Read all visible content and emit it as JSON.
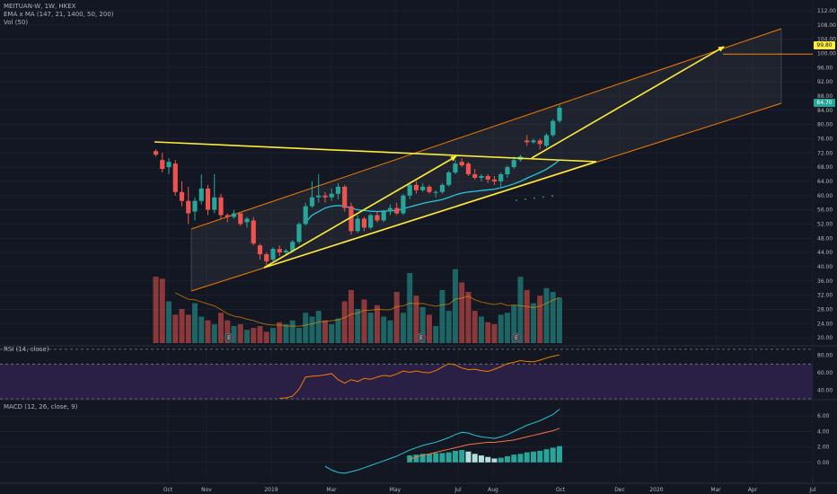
{
  "header": {
    "symbol_line": "MEITUAN-W, 1W, HKEX",
    "ema_line": "EMA x MA (147, 21, 1400, 50, 200)",
    "vol_line": "Vol (50)"
  },
  "panes": {
    "rsi_title": "RSI (14, close)",
    "macd_title": "MACD (12, 26, close, 9)"
  },
  "price_labels": {
    "target": "99.80",
    "last": "84.70"
  },
  "colors": {
    "background": "#131722",
    "up": "#26a69a",
    "down": "#ef5350",
    "trendline": "#ffeb3b",
    "channel": "#f57c00",
    "ema": "#26c6da",
    "rsi_band": "#2a1f45"
  },
  "event_markers": [
    "E",
    "E",
    "E"
  ],
  "chart_data": [
    {
      "type": "candlestick",
      "title": "MEITUAN-W, 1W, HKEX",
      "xlabel": "",
      "ylabel": "",
      "y_ticks": [
        "112.00",
        "108.00",
        "104.00",
        "100.00",
        "96.00",
        "92.00",
        "88.00",
        "84.00",
        "80.00",
        "76.00",
        "72.00",
        "68.00",
        "64.00",
        "60.00",
        "56.00",
        "52.00",
        "48.00",
        "44.00",
        "40.00",
        "36.00",
        "32.00",
        "28.00",
        "24.00",
        "20.00"
      ],
      "x_ticks": [
        "Oct",
        "Nov",
        "2019",
        "Mar",
        "May",
        "Jul",
        "Aug",
        "Oct",
        "Dec",
        "2020",
        "Mar",
        "Apr",
        "Jul"
      ],
      "ylim": [
        18,
        114
      ],
      "candles": [
        {
          "o": 72.5,
          "h": 73.0,
          "l": 71.0,
          "c": 71.5
        },
        {
          "o": 70.0,
          "h": 72.0,
          "l": 66.5,
          "c": 67.5
        },
        {
          "o": 68.0,
          "h": 70.5,
          "l": 66.0,
          "c": 69.5
        },
        {
          "o": 69.0,
          "h": 70.0,
          "l": 60.0,
          "c": 61.0
        },
        {
          "o": 61.0,
          "h": 64.0,
          "l": 57.0,
          "c": 58.5
        },
        {
          "o": 58.5,
          "h": 62.5,
          "l": 52.0,
          "c": 55.0
        },
        {
          "o": 55.5,
          "h": 59.5,
          "l": 53.0,
          "c": 58.5
        },
        {
          "o": 58.5,
          "h": 66.0,
          "l": 57.5,
          "c": 62.0
        },
        {
          "o": 62.0,
          "h": 63.0,
          "l": 54.5,
          "c": 56.0
        },
        {
          "o": 56.0,
          "h": 66.0,
          "l": 55.0,
          "c": 59.5
        },
        {
          "o": 59.5,
          "h": 60.5,
          "l": 53.5,
          "c": 54.5
        },
        {
          "o": 54.5,
          "h": 55.0,
          "l": 52.5,
          "c": 54.0
        },
        {
          "o": 54.0,
          "h": 56.0,
          "l": 53.5,
          "c": 55.0
        },
        {
          "o": 55.0,
          "h": 55.0,
          "l": 51.5,
          "c": 52.0
        },
        {
          "o": 52.5,
          "h": 54.0,
          "l": 51.0,
          "c": 53.5
        },
        {
          "o": 53.0,
          "h": 54.0,
          "l": 46.0,
          "c": 46.5
        },
        {
          "o": 46.0,
          "h": 46.5,
          "l": 42.0,
          "c": 43.5
        },
        {
          "o": 43.5,
          "h": 44.0,
          "l": 40.5,
          "c": 41.5
        },
        {
          "o": 42.0,
          "h": 45.5,
          "l": 41.5,
          "c": 45.0
        },
        {
          "o": 45.0,
          "h": 46.0,
          "l": 43.0,
          "c": 44.0
        },
        {
          "o": 44.0,
          "h": 45.0,
          "l": 43.5,
          "c": 44.5
        },
        {
          "o": 44.5,
          "h": 47.5,
          "l": 44.0,
          "c": 47.0
        },
        {
          "o": 47.0,
          "h": 52.5,
          "l": 46.5,
          "c": 52.0
        },
        {
          "o": 52.0,
          "h": 58.0,
          "l": 51.5,
          "c": 57.0
        },
        {
          "o": 57.0,
          "h": 64.0,
          "l": 56.5,
          "c": 59.5
        },
        {
          "o": 59.5,
          "h": 66.0,
          "l": 58.0,
          "c": 60.0
        },
        {
          "o": 60.0,
          "h": 61.0,
          "l": 58.0,
          "c": 59.5
        },
        {
          "o": 59.5,
          "h": 62.0,
          "l": 58.5,
          "c": 60.5
        },
        {
          "o": 60.5,
          "h": 63.5,
          "l": 59.0,
          "c": 62.5
        },
        {
          "o": 62.5,
          "h": 63.0,
          "l": 55.5,
          "c": 56.5
        },
        {
          "o": 57.0,
          "h": 58.0,
          "l": 49.0,
          "c": 50.0
        },
        {
          "o": 50.0,
          "h": 54.5,
          "l": 49.5,
          "c": 53.5
        },
        {
          "o": 53.5,
          "h": 54.0,
          "l": 50.0,
          "c": 51.0
        },
        {
          "o": 51.0,
          "h": 55.0,
          "l": 50.5,
          "c": 54.5
        },
        {
          "o": 54.5,
          "h": 55.5,
          "l": 52.5,
          "c": 53.0
        },
        {
          "o": 53.0,
          "h": 56.0,
          "l": 52.5,
          "c": 55.5
        },
        {
          "o": 55.5,
          "h": 57.5,
          "l": 54.5,
          "c": 56.5
        },
        {
          "o": 56.5,
          "h": 58.0,
          "l": 54.5,
          "c": 55.0
        },
        {
          "o": 55.0,
          "h": 60.5,
          "l": 54.5,
          "c": 60.0
        },
        {
          "o": 60.0,
          "h": 63.5,
          "l": 59.0,
          "c": 63.0
        },
        {
          "o": 63.0,
          "h": 64.0,
          "l": 60.5,
          "c": 61.5
        },
        {
          "o": 61.5,
          "h": 63.5,
          "l": 61.0,
          "c": 62.5
        },
        {
          "o": 62.5,
          "h": 63.0,
          "l": 60.5,
          "c": 61.0
        },
        {
          "o": 61.0,
          "h": 61.5,
          "l": 59.5,
          "c": 61.0
        },
        {
          "o": 61.0,
          "h": 63.5,
          "l": 60.5,
          "c": 63.0
        },
        {
          "o": 63.0,
          "h": 67.0,
          "l": 62.5,
          "c": 66.5
        },
        {
          "o": 66.5,
          "h": 70.0,
          "l": 66.0,
          "c": 69.0
        },
        {
          "o": 69.5,
          "h": 70.5,
          "l": 68.0,
          "c": 68.5
        },
        {
          "o": 69.0,
          "h": 69.5,
          "l": 65.5,
          "c": 66.0
        },
        {
          "o": 66.0,
          "h": 67.5,
          "l": 64.5,
          "c": 65.0
        },
        {
          "o": 65.0,
          "h": 66.0,
          "l": 64.0,
          "c": 65.5
        },
        {
          "o": 65.5,
          "h": 66.0,
          "l": 63.5,
          "c": 64.5
        },
        {
          "o": 64.5,
          "h": 65.5,
          "l": 63.0,
          "c": 64.0
        },
        {
          "o": 64.0,
          "h": 66.5,
          "l": 62.5,
          "c": 66.0
        },
        {
          "o": 66.0,
          "h": 68.5,
          "l": 65.0,
          "c": 68.0
        },
        {
          "o": 68.0,
          "h": 71.0,
          "l": 67.5,
          "c": 70.0
        },
        {
          "o": 70.0,
          "h": 71.5,
          "l": 69.5,
          "c": 71.0
        },
        {
          "o": 75.5,
          "h": 77.0,
          "l": 74.0,
          "c": 75.0
        },
        {
          "o": 75.0,
          "h": 76.0,
          "l": 74.5,
          "c": 75.5
        },
        {
          "o": 75.5,
          "h": 76.0,
          "l": 73.0,
          "c": 74.5
        },
        {
          "o": 74.0,
          "h": 77.5,
          "l": 73.5,
          "c": 77.0
        },
        {
          "o": 77.0,
          "h": 81.5,
          "l": 76.5,
          "c": 81.0
        },
        {
          "o": 81.0,
          "h": 85.5,
          "l": 80.5,
          "c": 84.7
        }
      ],
      "volume": [
        35,
        34,
        22,
        15,
        18,
        15,
        21,
        14,
        12,
        10,
        16,
        12,
        9,
        10,
        7,
        8,
        9,
        6,
        8,
        11,
        10,
        12,
        8,
        16,
        14,
        17,
        12,
        10,
        13,
        22,
        28,
        18,
        23,
        16,
        20,
        14,
        12,
        27,
        16,
        37,
        25,
        19,
        15,
        9,
        28,
        17,
        39,
        32,
        27,
        17,
        14,
        11,
        10,
        15,
        16,
        20,
        35,
        28,
        21,
        25,
        29,
        27,
        24
      ],
      "ema": [
        null,
        null,
        null,
        null,
        null,
        null,
        null,
        null,
        null,
        null,
        null,
        null,
        null,
        null,
        null,
        null,
        null,
        null,
        null,
        null,
        null,
        null,
        null,
        52.5,
        54.5,
        55.5,
        56.5,
        57.0,
        57.2,
        57.0,
        56.5,
        56.0,
        55.8,
        55.6,
        55.5,
        55.6,
        55.7,
        55.8,
        56.3,
        56.8,
        57.3,
        57.8,
        58.2,
        58.5,
        58.9,
        59.5,
        60.2,
        60.7,
        61.0,
        61.2,
        61.4,
        61.6,
        61.8,
        62.2,
        62.7,
        63.3,
        64.0,
        64.9,
        65.7,
        66.5,
        67.4,
        68.6,
        70.0
      ]
    },
    {
      "type": "line",
      "title": "RSI (14, close)",
      "y_ticks": [
        "80.00",
        "60.00",
        "40.00"
      ],
      "ylim": [
        30,
        90
      ],
      "band": [
        30,
        70
      ],
      "values": [
        null,
        null,
        null,
        null,
        null,
        null,
        null,
        null,
        null,
        null,
        null,
        null,
        null,
        null,
        null,
        null,
        null,
        null,
        null,
        30.5,
        31.0,
        33.0,
        41.0,
        55.0,
        56.0,
        56.5,
        57.5,
        59.0,
        52.0,
        48.0,
        52.0,
        50.0,
        53.5,
        52.5,
        55.0,
        57.0,
        56.0,
        58.5,
        62.0,
        60.5,
        62.0,
        60.5,
        60.0,
        62.5,
        66.5,
        70.5,
        69.0,
        65.5,
        63.5,
        64.0,
        62.5,
        61.5,
        64.0,
        67.0,
        70.5,
        72.0,
        74.0,
        73.0,
        72.5,
        74.5,
        77.0,
        79.0,
        80.5
      ]
    },
    {
      "type": "line",
      "title": "MACD (12, 26, close, 9)",
      "y_ticks": [
        "6.00",
        "4.00",
        "2.00",
        "0.00"
      ],
      "ylim": [
        -2,
        8
      ],
      "series": [
        {
          "values": [
            null,
            null,
            null,
            null,
            null,
            null,
            null,
            null,
            null,
            null,
            null,
            null,
            null,
            null,
            null,
            null,
            null,
            null,
            null,
            null,
            null,
            null,
            null,
            null,
            null,
            null,
            -0.5,
            -1.0,
            -1.3,
            -1.4,
            -1.2,
            -1.0,
            -0.7,
            -0.4,
            -0.1,
            0.2,
            0.5,
            0.8,
            1.2,
            1.6,
            1.9,
            2.2,
            2.4,
            2.6,
            2.9,
            3.2,
            3.6,
            3.9,
            3.8,
            3.5,
            3.3,
            3.2,
            3.1,
            3.3,
            3.6,
            4.0,
            4.4,
            4.8,
            5.1,
            5.4,
            5.8,
            6.2,
            6.9
          ]
        },
        {
          "values": [
            null,
            null,
            null,
            null,
            null,
            null,
            null,
            null,
            null,
            null,
            null,
            null,
            null,
            null,
            null,
            null,
            null,
            null,
            null,
            null,
            null,
            null,
            null,
            null,
            null,
            null,
            null,
            null,
            null,
            null,
            null,
            null,
            null,
            null,
            null,
            null,
            null,
            null,
            null,
            0.4,
            0.7,
            0.9,
            1.1,
            1.3,
            1.5,
            1.7,
            1.9,
            2.1,
            2.3,
            2.4,
            2.5,
            2.6,
            2.6,
            2.7,
            2.8,
            2.9,
            3.1,
            3.3,
            3.5,
            3.7,
            3.9,
            4.1,
            4.4
          ]
        }
      ],
      "histogram": [
        null,
        null,
        null,
        null,
        null,
        null,
        null,
        null,
        null,
        null,
        null,
        null,
        null,
        null,
        null,
        null,
        null,
        null,
        null,
        null,
        null,
        null,
        null,
        null,
        null,
        null,
        null,
        null,
        null,
        null,
        null,
        null,
        null,
        null,
        null,
        null,
        null,
        null,
        null,
        0.9,
        1.0,
        1.1,
        1.1,
        1.2,
        1.2,
        1.3,
        1.5,
        1.6,
        1.4,
        1.1,
        0.9,
        0.7,
        0.5,
        0.6,
        0.8,
        1.0,
        1.1,
        1.3,
        1.4,
        1.5,
        1.7,
        1.9,
        2.1
      ]
    }
  ]
}
